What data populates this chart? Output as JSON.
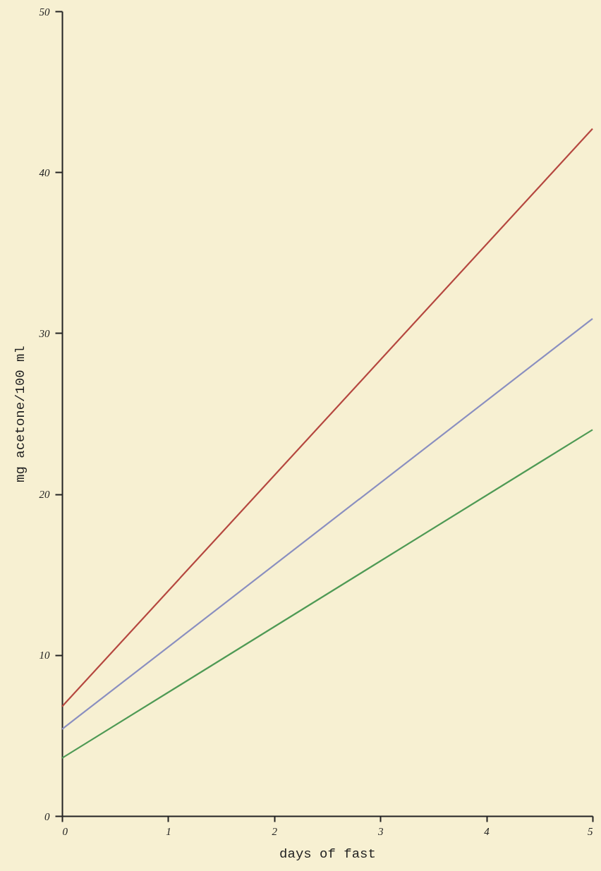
{
  "chart_data": {
    "type": "line",
    "xlabel": "days of fast",
    "ylabel": "mg acetone/100 ml",
    "x": [
      0,
      5
    ],
    "series": [
      {
        "color": "#b5473f",
        "values": [
          6.8,
          42.7
        ]
      },
      {
        "color": "#8a8fc0",
        "values": [
          5.4,
          30.9
        ]
      },
      {
        "color": "#4f9a55",
        "values": [
          3.6,
          24.0
        ]
      }
    ],
    "xlim": [
      0,
      5
    ],
    "xticks": [
      0,
      1,
      2,
      3,
      4,
      5
    ],
    "ylim": [
      0,
      50
    ],
    "yticks": [
      0,
      10,
      20,
      30,
      40,
      50
    ],
    "grid": false,
    "marker": "none",
    "line_style": "solid"
  }
}
